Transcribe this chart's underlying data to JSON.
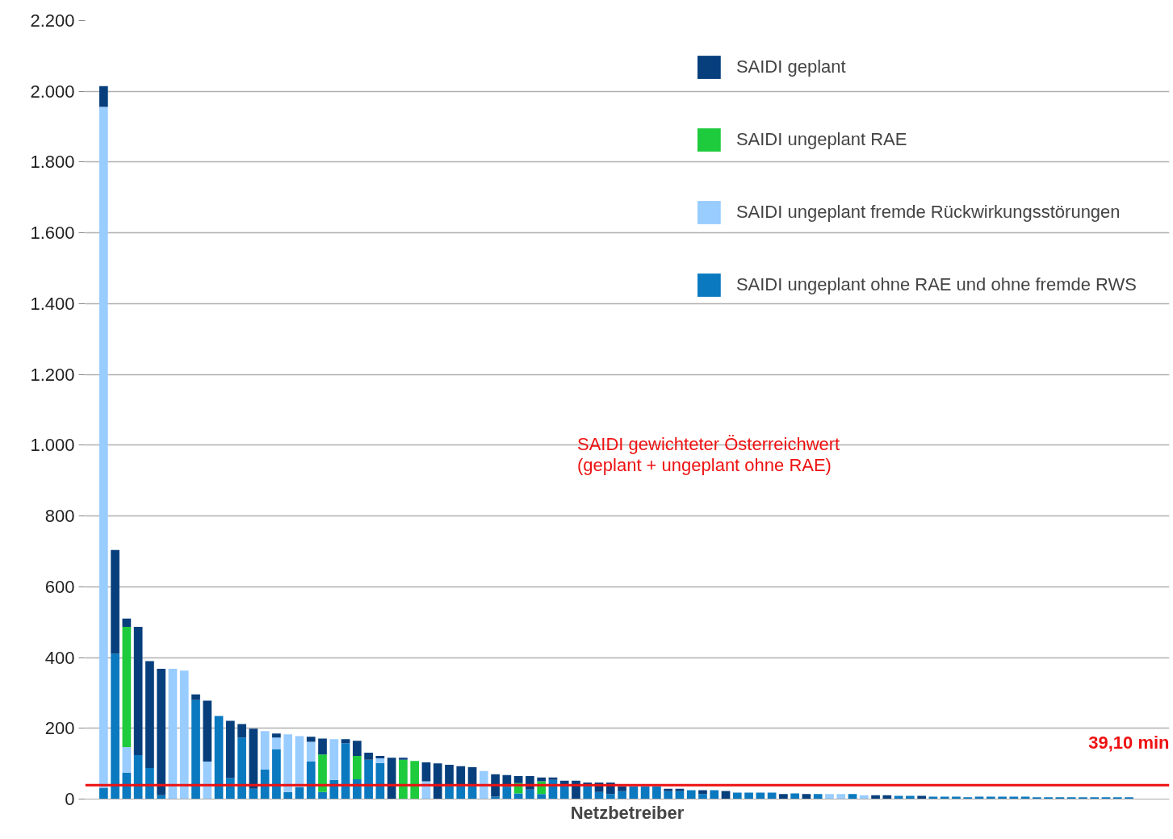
{
  "chart_data": {
    "type": "bar",
    "stacked": true,
    "xlabel": "Netzbetreiber",
    "categories": [
      null,
      null,
      null,
      null,
      null,
      null,
      null,
      null,
      null,
      null,
      null,
      null,
      null,
      null,
      null,
      null,
      null,
      null,
      null,
      null,
      null,
      null,
      null,
      null,
      null,
      null,
      null,
      null,
      null,
      null,
      null,
      null,
      null,
      null,
      null,
      null,
      null,
      null,
      null,
      null,
      null,
      null,
      null,
      null,
      null,
      null,
      null,
      null,
      null,
      null,
      null,
      null,
      null,
      null,
      null,
      null,
      null,
      null,
      null,
      null,
      null,
      null,
      null,
      null,
      null,
      null,
      null,
      null,
      null,
      null,
      null,
      null,
      null,
      null,
      null,
      null,
      null,
      null,
      null,
      null,
      null,
      null,
      null,
      null,
      null,
      null,
      null,
      null,
      null,
      null
    ],
    "series": [
      {
        "name": "SAIDI ungeplant ohne RAE und ohne fremde RWS",
        "color": "#0a79c0",
        "values": [
          32,
          411,
          74,
          124,
          88,
          11,
          null,
          null,
          280,
          null,
          235,
          59,
          174,
          29,
          83,
          140,
          20,
          34,
          106,
          20,
          54,
          158,
          56,
          111,
          102,
          null,
          null,
          null,
          null,
          null,
          40,
          40,
          40,
          null,
          7,
          34,
          16,
          27,
          14,
          54,
          40,
          null,
          40,
          20,
          14,
          22,
          36,
          36,
          36,
          22,
          22,
          25,
          14,
          25,
          null,
          18,
          18,
          18,
          18,
          null,
          16,
          null,
          14,
          null,
          null,
          14,
          null,
          null,
          null,
          9,
          9,
          null,
          7,
          7,
          7,
          5,
          7,
          7,
          7,
          7,
          7,
          5,
          5,
          5,
          5,
          5,
          5,
          5,
          5,
          5
        ]
      },
      {
        "name": "SAIDI ungeplant fremde Rückwirkungsstörungen",
        "color": "#99ccff",
        "values": [
          1924,
          null,
          73,
          null,
          null,
          null,
          368,
          363,
          null,
          106,
          null,
          null,
          null,
          null,
          109,
          34,
          163,
          144,
          56,
          null,
          115,
          null,
          null,
          null,
          13,
          null,
          null,
          null,
          50,
          null,
          null,
          null,
          null,
          79,
          null,
          null,
          null,
          null,
          null,
          null,
          null,
          null,
          null,
          null,
          null,
          null,
          null,
          null,
          null,
          null,
          null,
          null,
          null,
          null,
          null,
          null,
          null,
          null,
          null,
          null,
          null,
          null,
          null,
          14,
          14,
          null,
          11,
          null,
          null,
          null,
          null,
          null,
          null,
          null,
          null,
          null,
          null,
          null,
          null,
          null,
          null,
          null,
          null,
          null,
          null,
          null,
          null,
          null,
          null,
          null
        ]
      },
      {
        "name": "SAIDI ungeplant RAE",
        "color": "#1ecb3c",
        "values": [
          null,
          null,
          340,
          null,
          null,
          null,
          null,
          null,
          null,
          null,
          null,
          null,
          null,
          null,
          null,
          null,
          null,
          null,
          null,
          106,
          null,
          null,
          66,
          null,
          null,
          null,
          111,
          108,
          null,
          null,
          null,
          null,
          null,
          null,
          null,
          null,
          29,
          null,
          36,
          null,
          null,
          null,
          null,
          null,
          null,
          null,
          null,
          null,
          null,
          null,
          null,
          null,
          null,
          null,
          null,
          null,
          null,
          null,
          null,
          null,
          null,
          null,
          null,
          null,
          null,
          null,
          null,
          null,
          null,
          null,
          null,
          null,
          null,
          null,
          null,
          null,
          null,
          null,
          null,
          null,
          null,
          null,
          null,
          null,
          null,
          null,
          null,
          null,
          null,
          null
        ]
      },
      {
        "name": "SAIDI geplant",
        "color": "#073f7c",
        "values": [
          59,
          293,
          23,
          363,
          302,
          357,
          null,
          null,
          16,
          172,
          null,
          162,
          38,
          170,
          null,
          11,
          null,
          null,
          14,
          45,
          null,
          11,
          43,
          20,
          7,
          117,
          6,
          null,
          54,
          101,
          57,
          53,
          50,
          null,
          63,
          34,
          20,
          38,
          11,
          7,
          12,
          52,
          7,
          27,
          33,
          14,
          null,
          null,
          null,
          7,
          7,
          null,
          11,
          null,
          23,
          null,
          null,
          null,
          null,
          14,
          null,
          14,
          null,
          null,
          null,
          null,
          null,
          11,
          11,
          null,
          null,
          9,
          null,
          null,
          null,
          null,
          null,
          null,
          null,
          null,
          null,
          null,
          null,
          null,
          null,
          null,
          null,
          null,
          null,
          null
        ]
      }
    ],
    "ylim": [
      0,
      2200
    ],
    "yticks": [
      0,
      200,
      400,
      600,
      800,
      {
        "value": 1000,
        "label": "1.000"
      },
      {
        "value": 1200,
        "label": "1.200"
      },
      {
        "value": 1400,
        "label": "1.400"
      },
      {
        "value": 1600,
        "label": "1.600"
      },
      {
        "value": 1800,
        "label": "1.800"
      },
      {
        "value": 2000,
        "label": "2.000"
      },
      {
        "value": 2200,
        "label": "2.200"
      }
    ],
    "ref_lines": [
      {
        "axis": "y",
        "value": 39.1,
        "label": "39,10 min",
        "color": "#ee1111"
      }
    ],
    "annotations": [
      "SAIDI gewichteter Österreichwert",
      "(geplant + ungeplant ohne RAE)"
    ],
    "grid": "y",
    "legend": "top right",
    "tick_labels": "y"
  }
}
